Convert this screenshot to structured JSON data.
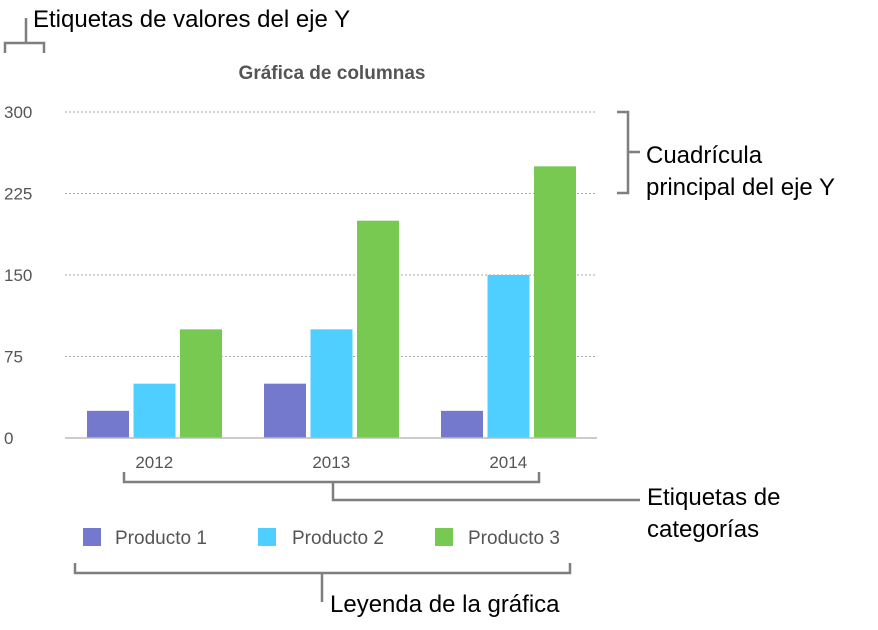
{
  "callouts": {
    "y_value_labels": "Etiquetas de valores del eje Y",
    "major_gridlines_line1": "Cuadrícula",
    "major_gridlines_line2": "principal del eje Y",
    "category_labels_line1": "Etiquetas de",
    "category_labels_line2": "categorías",
    "legend": "Leyenda de la gráfica"
  },
  "chart_data": {
    "type": "bar",
    "title": "Gráfica de columnas",
    "categories": [
      "2012",
      "2013",
      "2014"
    ],
    "series": [
      {
        "name": "Producto 1",
        "values": [
          25,
          50,
          25
        ],
        "color": "#7479CD"
      },
      {
        "name": "Producto 2",
        "values": [
          50,
          100,
          150
        ],
        "color": "#4FCFFF"
      },
      {
        "name": "Producto 3",
        "values": [
          100,
          200,
          250
        ],
        "color": "#78C952"
      }
    ],
    "yticks": [
      "0",
      "75",
      "150",
      "225",
      "300"
    ],
    "ylim": [
      0,
      300
    ],
    "grid": true,
    "legend_position": "bottom"
  }
}
